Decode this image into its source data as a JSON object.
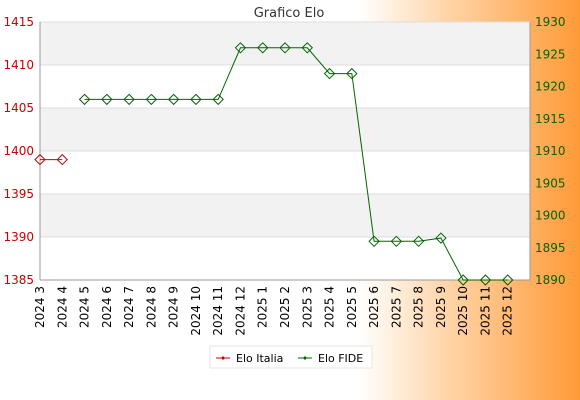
{
  "chart_data": {
    "type": "line",
    "title": "Grafico Elo",
    "categories": [
      "2024 3",
      "2024 4",
      "2024 5",
      "2024 6",
      "2024 7",
      "2024 8",
      "2024 9",
      "2024 10",
      "2024 11",
      "2024 12",
      "2025 1",
      "2025 2",
      "2025 3",
      "2025 4",
      "2025 5",
      "2025 6",
      "2025 7",
      "2025 8",
      "2025 9",
      "2025 10",
      "2025 11",
      "2025 12"
    ],
    "y_left": {
      "min": 1385,
      "max": 1415,
      "ticks": [
        1385,
        1390,
        1395,
        1400,
        1405,
        1410,
        1415
      ],
      "color": "#cc0000"
    },
    "y_right": {
      "min": 1890,
      "max": 1930,
      "ticks": [
        1890,
        1895,
        1900,
        1905,
        1910,
        1915,
        1920,
        1925,
        1930
      ],
      "color": "#006600"
    },
    "series": [
      {
        "name": "Elo Italia",
        "axis": "left",
        "color": "#cc0000",
        "values": [
          1399,
          1399,
          null,
          null,
          null,
          null,
          null,
          null,
          null,
          null,
          null,
          null,
          null,
          null,
          null,
          null,
          null,
          null,
          null,
          null,
          null,
          null
        ]
      },
      {
        "name": "Elo FIDE",
        "axis": "right",
        "color": "#006600",
        "values": [
          null,
          null,
          1918,
          1918,
          1918,
          1918,
          1918,
          1918,
          1918,
          1926,
          1926,
          1926,
          1926,
          1922,
          1922,
          1896,
          1896,
          1896,
          1896.5,
          1890,
          1890,
          1890
        ]
      }
    ],
    "grid": true,
    "legend_position": "bottom-center"
  }
}
